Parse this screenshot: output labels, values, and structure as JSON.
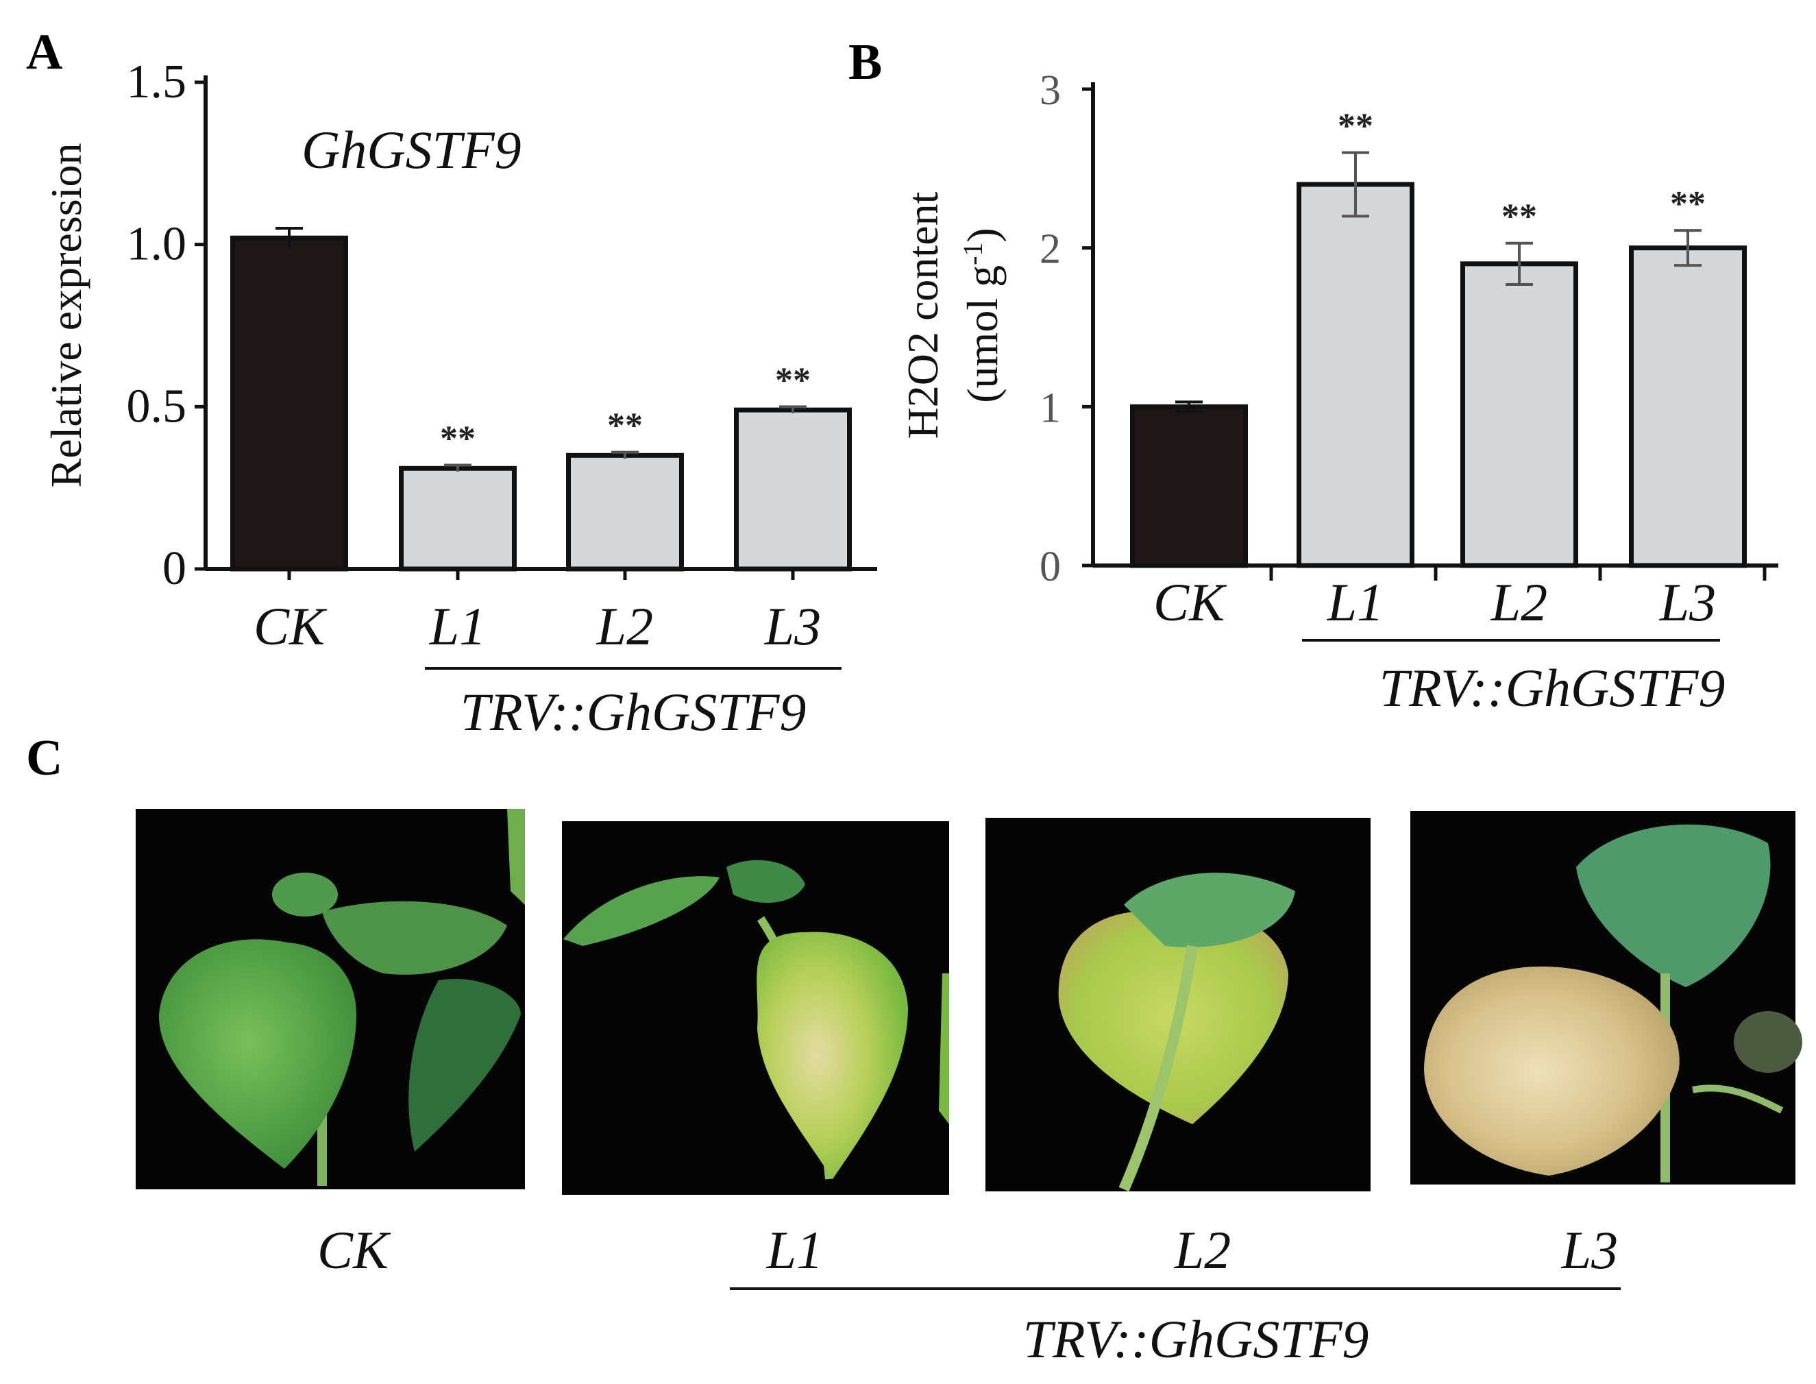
{
  "panels": {
    "a": "A",
    "b": "B",
    "c": "C"
  },
  "group_label": "TRV::GhGSTF9",
  "chart_data": [
    {
      "type": "bar",
      "panel": "A",
      "title": "GhGSTF9",
      "ylabel": "Relative expression",
      "categories": [
        "CK",
        "L1",
        "L2",
        "L3"
      ],
      "values": [
        1.02,
        0.31,
        0.35,
        0.49
      ],
      "errors": [
        0.03,
        0.01,
        0.01,
        0.01
      ],
      "significance": [
        "",
        "**",
        "**",
        "**"
      ],
      "ylim": [
        0,
        1.5
      ],
      "yticks": [
        0,
        0.5,
        1.0,
        1.5
      ],
      "ytick_labels": [
        "0",
        "0.5",
        "1.0",
        "1.5"
      ],
      "bar_colors": [
        "#1e1718",
        "#d5d8db",
        "#d5d8db",
        "#d5d8db"
      ]
    },
    {
      "type": "bar",
      "panel": "B",
      "ylabel": "H2O2 content",
      "ylabel_unit_prefix": "(umol g",
      "ylabel_unit_sup": "-1",
      "ylabel_unit_suffix": ")",
      "categories": [
        "CK",
        "L1",
        "L2",
        "L3"
      ],
      "values": [
        1.0,
        2.4,
        1.9,
        2.0
      ],
      "errors": [
        0.03,
        0.2,
        0.13,
        0.11
      ],
      "significance": [
        "",
        "**",
        "**",
        "**"
      ],
      "ylim": [
        0,
        3
      ],
      "yticks": [
        0,
        1,
        2,
        3
      ],
      "ytick_labels": [
        "0",
        "1",
        "2",
        "3"
      ],
      "bar_colors": [
        "#1e1718",
        "#d5d8db",
        "#d5d8db",
        "#d5d8db"
      ]
    }
  ],
  "photos": {
    "labels": [
      "CK",
      "L1",
      "L2",
      "L3"
    ],
    "leaf_colors": [
      "#5fae4a",
      "#a9c94c",
      "#b7d05a",
      "#d8c28c"
    ]
  }
}
